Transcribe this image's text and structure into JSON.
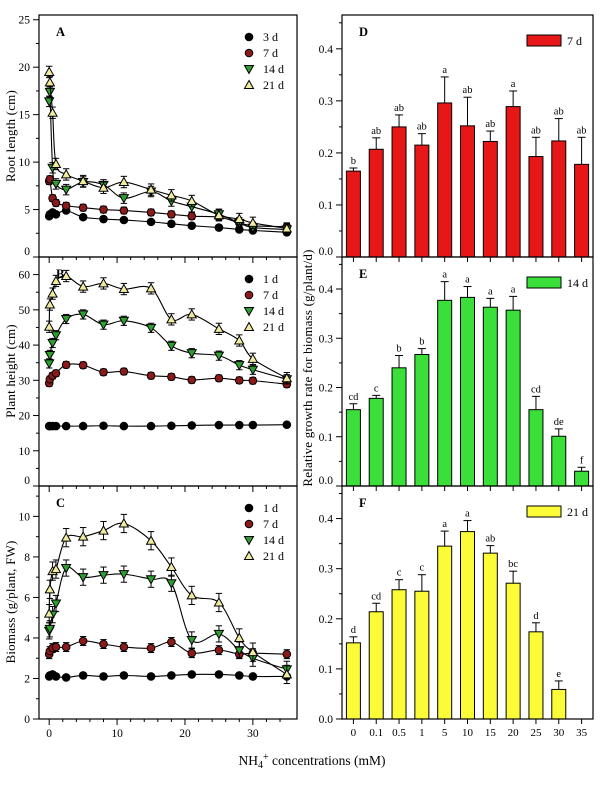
{
  "figure": {
    "xlabel": {
      "prefix": "NH",
      "sub": "4",
      "sup": "+",
      "rest": " concentrations (mM)"
    },
    "right_ylabel": "Relative growth rate for biomass (g/plant/d)",
    "background": "#ffffff",
    "axis_color": "#000000"
  },
  "chart_data": [
    {
      "panel": "A",
      "type": "scatter",
      "ylabel": "Root length (cm)",
      "ylim": [
        0,
        25.5
      ],
      "yticks": [
        0,
        5,
        10,
        15,
        20,
        25
      ],
      "ydec": 0,
      "xlim": [
        -1.5,
        36.5
      ],
      "xticks": [
        0,
        10,
        20,
        30
      ],
      "show_xtick_labels": false,
      "x": [
        0,
        0.1,
        0.5,
        1,
        2.5,
        5,
        8,
        11,
        15,
        18,
        21,
        25,
        28,
        30,
        35
      ],
      "series": [
        {
          "name": "3 d",
          "marker": "circle",
          "color": "#000000",
          "values": [
            4.3,
            4.5,
            4.7,
            4.5,
            4.9,
            4.2,
            4.0,
            3.9,
            3.7,
            3.5,
            3.3,
            3.1,
            2.9,
            2.8,
            2.6
          ],
          "error": 0.25
        },
        {
          "name": "7 d",
          "marker": "circle",
          "color": "#8B1A1A",
          "values": [
            8.0,
            8.2,
            6.2,
            5.7,
            5.4,
            5.2,
            5.0,
            4.9,
            4.7,
            4.5,
            4.3,
            4.2,
            3.6,
            3.3,
            3.2
          ],
          "error": 0.35
        },
        {
          "name": "14 d",
          "marker": "tri-down",
          "color": "#2E9E2E",
          "values": [
            16.4,
            17.4,
            9.4,
            7.7,
            7.1,
            7.9,
            7.6,
            6.2,
            6.9,
            5.9,
            5.3,
            4.5,
            3.6,
            3.1,
            2.9
          ],
          "error": 0.55
        },
        {
          "name": "21 d",
          "marker": "tri-up",
          "color": "#F0EB9E",
          "values": [
            19.5,
            18.4,
            15.2,
            9.8,
            8.7,
            8.0,
            7.3,
            7.9,
            7.1,
            6.5,
            5.9,
            4.4,
            4.0,
            3.6,
            3.0
          ],
          "error": 0.6
        }
      ]
    },
    {
      "panel": "B",
      "type": "scatter",
      "ylabel": "Plant height (cm)",
      "ylim": [
        0,
        65
      ],
      "yticks": [
        0,
        10,
        20,
        30,
        40,
        50,
        60
      ],
      "ydec": 0,
      "xlim": [
        -1.5,
        36.5
      ],
      "xticks": [
        0,
        10,
        20,
        30
      ],
      "show_xtick_labels": false,
      "x": [
        0,
        0.1,
        0.5,
        1,
        2.5,
        5,
        8,
        11,
        15,
        18,
        21,
        25,
        28,
        30,
        35
      ],
      "series": [
        {
          "name": "1 d",
          "marker": "circle",
          "color": "#000000",
          "values": [
            17,
            17,
            17,
            17,
            17,
            17,
            17.1,
            17,
            17,
            17.1,
            17.2,
            17.3,
            17.3,
            17.3,
            17.4
          ],
          "error": 0.3
        },
        {
          "name": "7 d",
          "marker": "circle",
          "color": "#8B1A1A",
          "values": [
            29.2,
            30.3,
            31.3,
            32.0,
            34.4,
            34.3,
            32.3,
            32.5,
            31.3,
            31.0,
            30.1,
            30.6,
            30.0,
            29.9,
            28.9
          ],
          "error": 0.9
        },
        {
          "name": "14 d",
          "marker": "tri-down",
          "color": "#2E9E2E",
          "values": [
            34.8,
            37.2,
            40.6,
            42.8,
            47.4,
            48.7,
            45.8,
            46.9,
            44.9,
            39.8,
            37.7,
            37.0,
            34.3,
            33.0,
            30.3
          ],
          "error": 1.3
        },
        {
          "name": "21 d",
          "marker": "tri-up",
          "color": "#F0EB9E",
          "values": [
            45.2,
            51.5,
            54.6,
            58.2,
            59.6,
            56.6,
            57.5,
            55.9,
            56.1,
            47.3,
            48.7,
            44.6,
            41.3,
            36.1,
            30.6
          ],
          "error": 1.6
        }
      ]
    },
    {
      "panel": "C",
      "type": "scatter",
      "ylabel": "Biomass (g/plant, FW)",
      "ylim": [
        0,
        11.5
      ],
      "yticks": [
        0,
        2,
        4,
        6,
        8,
        10
      ],
      "ydec": 0,
      "xlim": [
        -1.5,
        36.5
      ],
      "xticks": [
        0,
        10,
        20,
        30
      ],
      "show_xtick_labels": true,
      "x": [
        0,
        0.1,
        0.5,
        1,
        2.5,
        5,
        8,
        11,
        15,
        18,
        21,
        25,
        28,
        30,
        35
      ],
      "series": [
        {
          "name": "1 d",
          "marker": "circle",
          "color": "#000000",
          "values": [
            2.1,
            2.15,
            2.2,
            2.1,
            2.05,
            2.15,
            2.1,
            2.15,
            2.1,
            2.15,
            2.2,
            2.2,
            2.15,
            2.1,
            2.1
          ],
          "error": 0.12
        },
        {
          "name": "7 d",
          "marker": "circle",
          "color": "#8B1A1A",
          "values": [
            3.2,
            3.35,
            3.5,
            3.55,
            3.55,
            3.85,
            3.7,
            3.55,
            3.5,
            3.8,
            3.25,
            3.4,
            3.2,
            3.25,
            3.2
          ],
          "error": 0.22
        },
        {
          "name": "14 d",
          "marker": "tri-down",
          "color": "#2E9E2E",
          "values": [
            4.35,
            4.45,
            5.15,
            5.7,
            7.45,
            7.0,
            7.1,
            7.15,
            6.9,
            6.7,
            3.9,
            4.2,
            3.4,
            3.0,
            2.45
          ],
          "error": 0.4
        },
        {
          "name": "21 d",
          "marker": "tri-up",
          "color": "#F0EB9E",
          "values": [
            5.2,
            6.4,
            7.3,
            7.4,
            8.95,
            9.0,
            9.3,
            9.65,
            8.8,
            7.5,
            6.1,
            5.75,
            4.0,
            3.3,
            2.2
          ],
          "error": 0.45
        }
      ]
    },
    {
      "panel": "D",
      "type": "bar",
      "legend": "7 d",
      "color": "#E81717",
      "categories": [
        "0",
        "0.1",
        "0.5",
        "1",
        "5",
        "10",
        "15",
        "20",
        "25",
        "30",
        "35"
      ],
      "values": [
        0.165,
        0.207,
        0.25,
        0.215,
        0.296,
        0.252,
        0.222,
        0.289,
        0.193,
        0.223,
        0.178
      ],
      "errors": [
        0.006,
        0.022,
        0.023,
        0.022,
        0.05,
        0.055,
        0.02,
        0.03,
        0.037,
        0.043,
        0.052
      ],
      "sig_letters": [
        "b",
        "ab",
        "ab",
        "ab",
        "a",
        "ab",
        "ab",
        "a",
        "ab",
        "ab",
        "ab"
      ],
      "ylim": [
        0,
        0.465
      ],
      "yticks": [
        0,
        0.1,
        0.2,
        0.3,
        0.4
      ],
      "ydec": 1,
      "show_xtick_labels": false
    },
    {
      "panel": "E",
      "type": "bar",
      "legend": "14 d",
      "color": "#3ADF3A",
      "categories": [
        "0",
        "0.1",
        "0.5",
        "1",
        "5",
        "10",
        "15",
        "20",
        "25",
        "30",
        "35"
      ],
      "values": [
        0.155,
        0.178,
        0.24,
        0.267,
        0.377,
        0.383,
        0.363,
        0.357,
        0.155,
        0.101,
        0.03
      ],
      "errors": [
        0.012,
        0.006,
        0.025,
        0.012,
        0.038,
        0.022,
        0.018,
        0.028,
        0.027,
        0.015,
        0.008
      ],
      "sig_letters": [
        "cd",
        "c",
        "b",
        "b",
        "a",
        "a",
        "a",
        "a",
        "cd",
        "de",
        "f"
      ],
      "ylim": [
        0,
        0.465
      ],
      "yticks": [
        0,
        0.1,
        0.2,
        0.3,
        0.4
      ],
      "ydec": 1,
      "show_xtick_labels": false
    },
    {
      "panel": "F",
      "type": "bar",
      "legend": "21 d",
      "color": "#FBFB38",
      "categories": [
        "0",
        "0.1",
        "0.5",
        "1",
        "5",
        "10",
        "15",
        "20",
        "25",
        "30",
        "35"
      ],
      "values": [
        0.152,
        0.214,
        0.258,
        0.255,
        0.345,
        0.374,
        0.331,
        0.271,
        0.174,
        0.059,
        null
      ],
      "errors": [
        0.012,
        0.017,
        0.02,
        0.033,
        0.03,
        0.022,
        0.015,
        0.024,
        0.018,
        0.017,
        null
      ],
      "sig_letters": [
        "d",
        "cd",
        "c",
        "c",
        "a",
        "a",
        "ab",
        "bc",
        "d",
        "e",
        ""
      ],
      "ylim": [
        0,
        0.465
      ],
      "yticks": [
        0,
        0.1,
        0.2,
        0.3,
        0.4
      ],
      "ydec": 1,
      "show_xtick_labels": true
    }
  ]
}
